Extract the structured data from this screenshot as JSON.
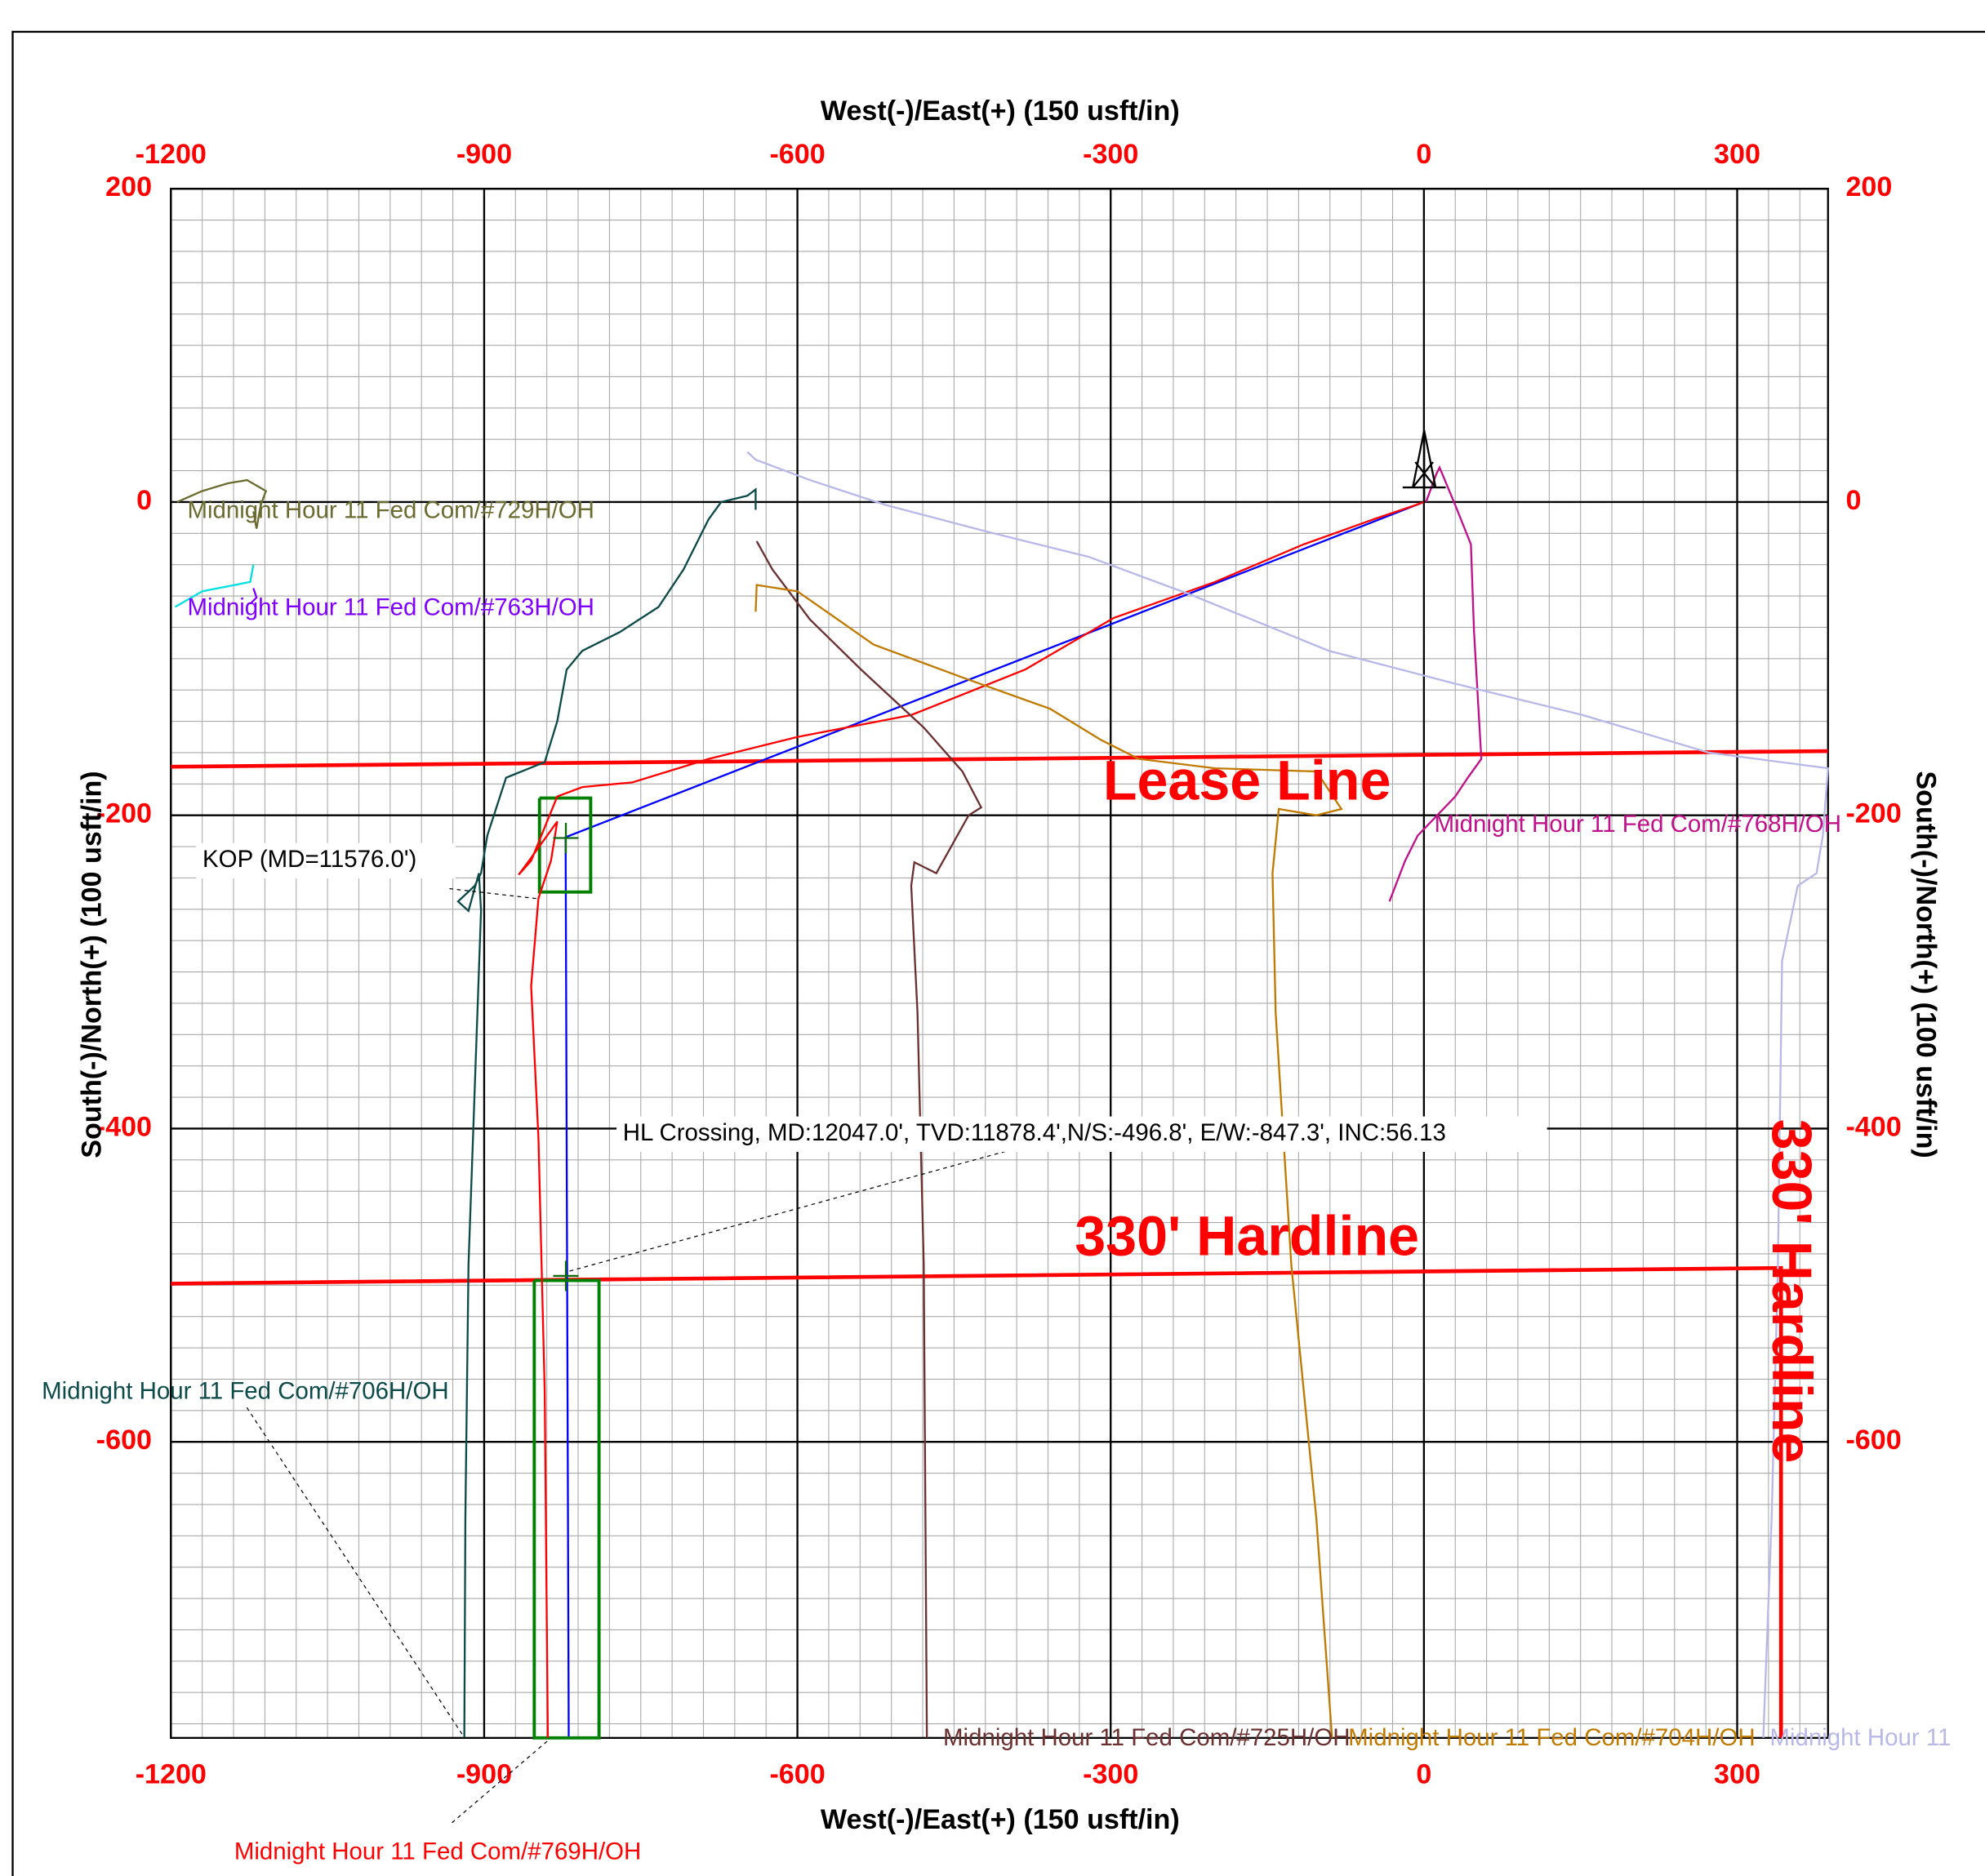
{
  "chart_data": {
    "type": "line",
    "xlabel": "West(-)/East(+) (150 usft/in)",
    "ylabel": "South(-)/North(+) (100 usft/in)",
    "xlim": [
      -1200,
      387
    ],
    "ylim": [
      -789,
      200
    ],
    "xticks": [
      -1200,
      -900,
      -600,
      -300,
      0,
      300
    ],
    "yticks": [
      200,
      0,
      -200,
      -400,
      -600
    ],
    "grid": true,
    "series": [
      {
        "name": "Lease Line",
        "color": "#ff0000",
        "x": [
          -1200,
          387
        ],
        "y": [
          -169,
          -159
        ]
      },
      {
        "name": "330' Hardline",
        "color": "#ff0000",
        "x": [
          -1200,
          342,
          342
        ],
        "y": [
          -499,
          -489,
          -789
        ]
      },
      {
        "color": "#0000ff",
        "x": [
          0,
          -822,
          -819
        ],
        "y": [
          0,
          -214,
          -789
        ]
      },
      {
        "color": "#008000",
        "x": [
          -847,
          -798,
          -798,
          -847,
          -847
        ],
        "y": [
          -189,
          -189,
          -249,
          -249,
          -189
        ]
      },
      {
        "color": "#008000",
        "x": [
          -852,
          -790,
          -790,
          -852,
          -852
        ],
        "y": [
          -497,
          -497,
          -789,
          -789,
          -497
        ]
      },
      {
        "name": "Midnight Hour 11 Fed Com/#706H/OH",
        "color": "#0d4a4a",
        "x": [
          -919,
          -918,
          -915,
          -909,
          -903,
          -905,
          -915,
          -925,
          -909,
          -903,
          -897,
          -879,
          -842,
          -830,
          -821,
          -806,
          -770,
          -733,
          -709,
          -685,
          -673,
          -648,
          -640,
          -640
        ],
        "y": [
          -789,
          -649,
          -487,
          -374,
          -261,
          -237,
          -261,
          -255,
          -245,
          -237,
          -213,
          -176,
          -166,
          -140,
          -107,
          -95,
          -83,
          -67,
          -43,
          -11,
          0,
          4,
          8,
          -5
        ]
      },
      {
        "name": "Midnight Hour 11 Fed Com/#769H/OH",
        "color": "#ff0000",
        "x": [
          0,
          -8,
          -48,
          -115,
          -200,
          -297,
          -382,
          -491,
          -600,
          -685,
          -758,
          -806,
          -830,
          -855,
          -867,
          -857,
          -830,
          -836,
          -848,
          -855,
          -848,
          -842,
          -839
        ],
        "y": [
          0,
          -2,
          -11,
          -27,
          -51,
          -74,
          -107,
          -136,
          -150,
          -164,
          -179,
          -182,
          -188,
          -229,
          -238,
          -229,
          -204,
          -229,
          -253,
          -309,
          -406,
          -568,
          -789
        ]
      },
      {
        "name": "Midnight Hour 11 Fed Com/#725H/OH",
        "color": "#6b3030",
        "x": [
          -639,
          -624,
          -588,
          -539,
          -479,
          -442,
          -424,
          -436,
          -467,
          -479,
          -488,
          -491,
          -485,
          -479,
          -476
        ],
        "y": [
          -25,
          -43,
          -75,
          -107,
          -144,
          -172,
          -195,
          -200,
          -237,
          -233,
          -230,
          -245,
          -326,
          -487,
          -789
        ]
      },
      {
        "name": "Midnight Hour 11 Fed Com/#704H/OH",
        "color": "#c07a00",
        "x": [
          -640,
          -639,
          -600,
          -527,
          -442,
          -358,
          -309,
          -273,
          -200,
          -103,
          -79,
          -103,
          -139,
          -145,
          -142,
          -127,
          -103,
          -88
        ],
        "y": [
          -70,
          -53,
          -57,
          -91,
          -112,
          -132,
          -152,
          -164,
          -170,
          -172,
          -196,
          -200,
          -196,
          -237,
          -326,
          -487,
          -649,
          -789
        ]
      },
      {
        "name": "Midnight Hour 11 Fed Com/#768H/OH",
        "color": "#c0108a",
        "x": [
          2,
          12,
          15,
          30,
          45,
          48,
          55,
          42,
          30,
          -6,
          -18,
          -33
        ],
        "y": [
          0,
          18,
          22,
          -2,
          -27,
          -83,
          -164,
          -176,
          -188,
          -213,
          -229,
          -255
        ]
      },
      {
        "name": "Midnight Hour 11",
        "color": "#b8b8e8",
        "x": [
          -648,
          -640,
          -588,
          -515,
          -418,
          -321,
          -224,
          -91,
          30,
          152,
          273,
          387,
          382,
          376,
          358,
          343,
          339,
          333,
          325
        ],
        "y": [
          32,
          27,
          14,
          -2,
          -19,
          -35,
          -59,
          -95,
          -116,
          -136,
          -160,
          -170,
          -213,
          -237,
          -245,
          -293,
          -487,
          -649,
          -789
        ]
      },
      {
        "name": "Midnight Hour 11 Fed Com/#729H/OH",
        "color": "#6b6b30",
        "x": [
          -1194,
          -1170,
          -1145,
          -1127,
          -1109,
          -1114,
          -1118,
          -1121
        ],
        "y": [
          0,
          7,
          12,
          14,
          7,
          -2,
          -17,
          -6
        ]
      },
      {
        "color": "#00e0e0",
        "x": [
          -1196,
          -1170,
          -1139,
          -1124,
          -1121
        ],
        "y": [
          -67,
          -57,
          -53,
          -51,
          -40
        ]
      },
      {
        "name": "Midnight Hour 11 Fed Com/#763H/OH",
        "color": "#8000ff",
        "x": [
          -1121,
          -1118,
          -1124
        ],
        "y": [
          -55,
          -61,
          -65
        ]
      }
    ],
    "annotations": [
      "KOP   (MD=11576.0')",
      "HL Crossing, MD:12047.0', TVD:11878.4',N/S:-496.8', E/W:-847.3', INC:56.13"
    ]
  }
}
